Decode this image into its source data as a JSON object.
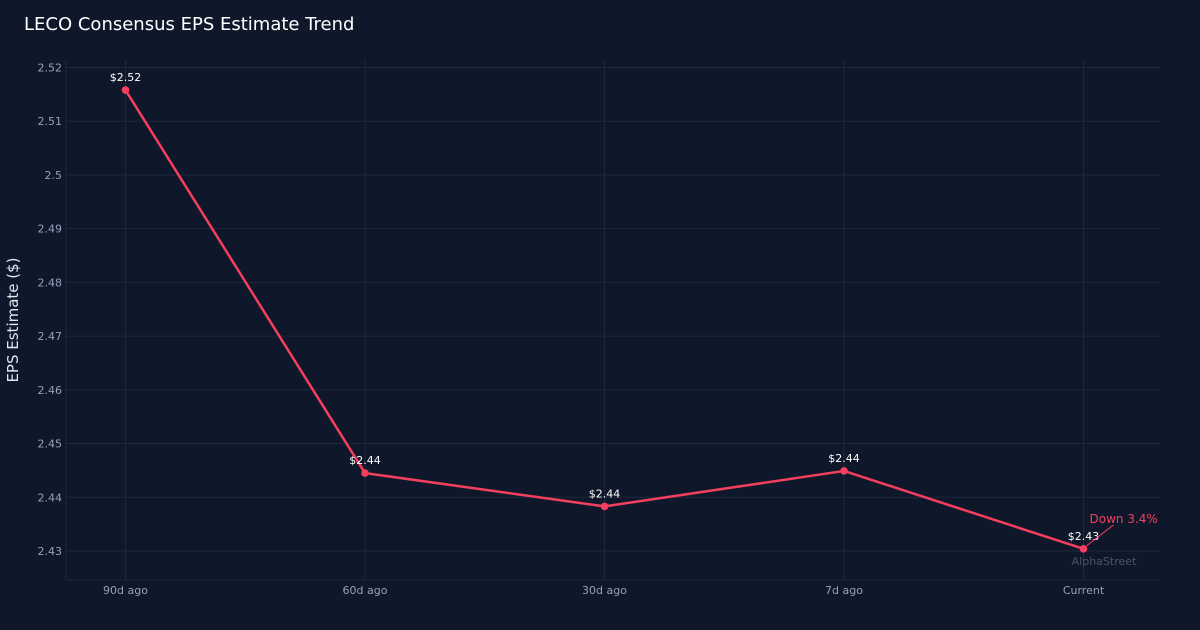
{
  "colors": {
    "background": "#0f172a",
    "grid": "#1e293b",
    "series": "#f43f5e",
    "tick_text": "#94a3b8",
    "title_text": "#ffffff",
    "watermark": "#475569"
  },
  "chart_data": {
    "type": "line",
    "title": "LECO Consensus EPS Estimate Trend",
    "xlabel": "",
    "ylabel": "EPS Estimate ($)",
    "categories": [
      "90d ago",
      "60d ago",
      "30d ago",
      "7d ago",
      "Current"
    ],
    "series": [
      {
        "values": [
          2.5158,
          2.4445,
          2.4383,
          2.4449,
          2.4304
        ],
        "labels": [
          "$2.52",
          "$2.44",
          "$2.44",
          "$2.44",
          "$2.43"
        ]
      }
    ],
    "yticks": [
      2.43,
      2.44,
      2.45,
      2.46,
      2.47,
      2.48,
      2.49,
      2.5,
      2.51,
      2.52
    ],
    "ytick_labels": [
      "2.43",
      "2.44",
      "2.45",
      "2.46",
      "2.47",
      "2.48",
      "2.49",
      "2.5",
      "2.51",
      "2.52"
    ],
    "ylim": [
      2.4246,
      2.5214
    ],
    "grid": true,
    "legend": "none",
    "annotation": {
      "text": "Down 3.4%",
      "target": "Current"
    },
    "watermark": "AlphaStreet"
  }
}
